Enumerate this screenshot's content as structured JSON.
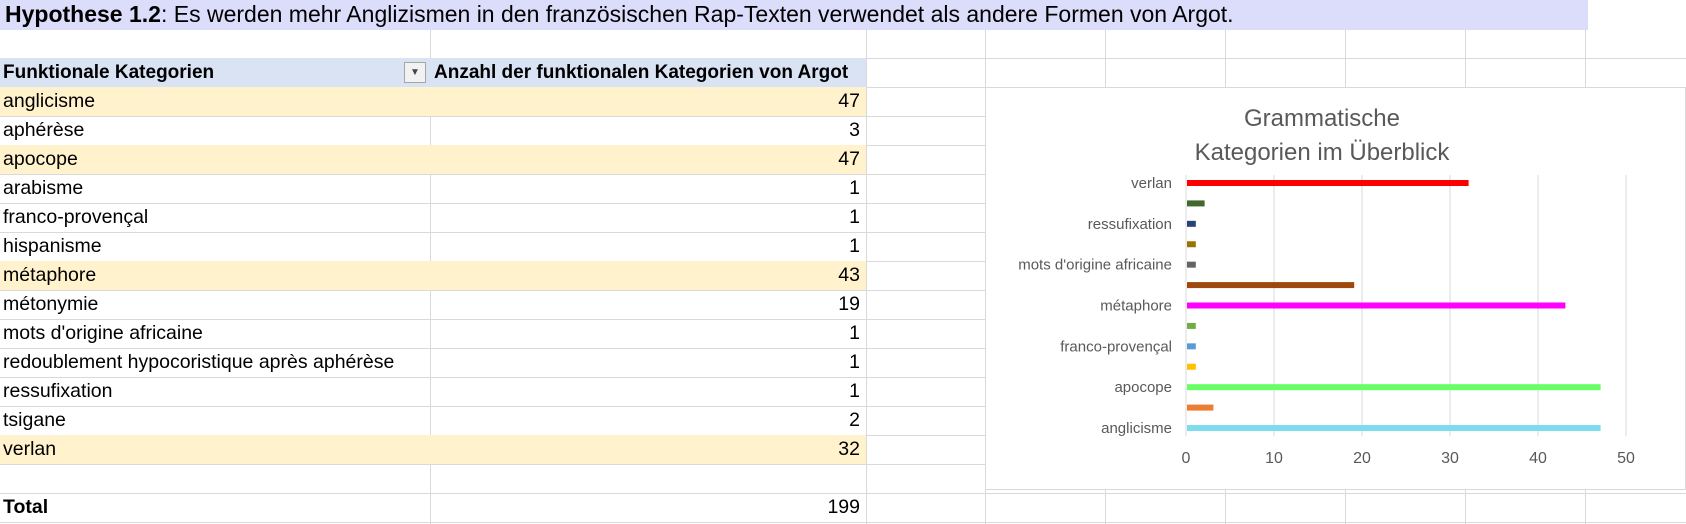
{
  "title": {
    "bold": "Hypothese 1.2",
    "rest": ": Es werden mehr Anglizismen in den französischen Rap-Texten verwendet als andere Formen von Argot."
  },
  "table": {
    "header_col1": "Funktionale Kategorien",
    "header_col2": "Anzahl der funktionalen Kategorien von Argot",
    "rows": [
      {
        "label": "anglicisme",
        "value": "47",
        "highlight": true
      },
      {
        "label": "aphérèse",
        "value": "3",
        "highlight": false
      },
      {
        "label": "apocope",
        "value": "47",
        "highlight": true
      },
      {
        "label": "arabisme",
        "value": "1",
        "highlight": false
      },
      {
        "label": "franco-provençal",
        "value": "1",
        "highlight": false
      },
      {
        "label": "hispanisme",
        "value": "1",
        "highlight": false
      },
      {
        "label": "métaphore",
        "value": "43",
        "highlight": true
      },
      {
        "label": "métonymie",
        "value": "19",
        "highlight": false
      },
      {
        "label": "mots d'origine africaine",
        "value": "1",
        "highlight": false
      },
      {
        "label": "redoublement hypocoristique après aphérèse",
        "value": "1",
        "highlight": false
      },
      {
        "label": "ressufixation",
        "value": "1",
        "highlight": false
      },
      {
        "label": "tsigane",
        "value": "2",
        "highlight": false
      },
      {
        "label": "verlan",
        "value": "32",
        "highlight": true
      }
    ],
    "total_label": "Total",
    "total_value": "199",
    "highlight_color": "#fff2cc",
    "header_color": "#dae3f3",
    "filter_icon": "dropdown-arrow-icon"
  },
  "chart_data": {
    "type": "bar",
    "orientation": "horizontal",
    "title_lines": [
      "Grammatische",
      "Kategorien im Überblick"
    ],
    "categories": [
      "anglicisme",
      "aphérèse",
      "apocope",
      "arabisme",
      "franco-provençal",
      "hispanisme",
      "métaphore",
      "métonymie",
      "mots d'origine africaine",
      "redoublement hypocoristique après aphérèse",
      "ressufixation",
      "tsigane",
      "verlan"
    ],
    "values": [
      47,
      3,
      47,
      1,
      1,
      1,
      43,
      19,
      1,
      1,
      1,
      2,
      32
    ],
    "visible_category_labels": [
      "anglicisme",
      "apocope",
      "franco-provençal",
      "métaphore",
      "mots d'origine africaine",
      "ressufixation",
      "verlan"
    ],
    "colors": [
      "#7fdbef",
      "#ed7d31",
      "#66ff66",
      "#ffc000",
      "#5b9bd5",
      "#70ad47",
      "#ff00ff",
      "#9e480e",
      "#636363",
      "#997300",
      "#264478",
      "#43682b",
      "#ff0000"
    ],
    "xlim": [
      0,
      50
    ],
    "xticks": [
      0,
      10,
      20,
      30,
      40,
      50
    ],
    "grid": true,
    "legend": "none"
  }
}
